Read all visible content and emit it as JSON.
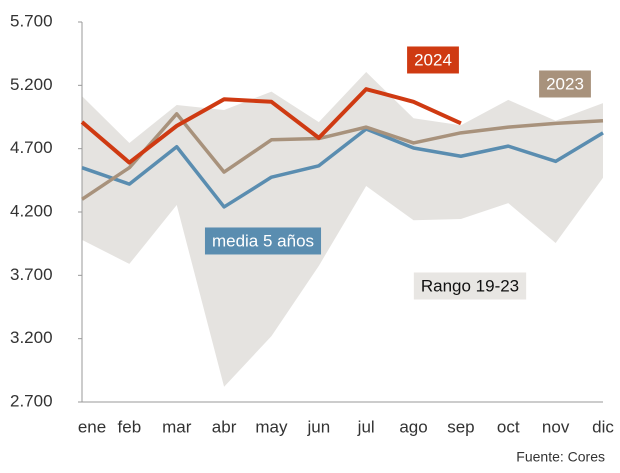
{
  "chart_data": {
    "type": "line",
    "categories": [
      "ene",
      "feb",
      "mar",
      "abr",
      "may",
      "jun",
      "jul",
      "ago",
      "sep",
      "oct",
      "nov",
      "dic"
    ],
    "range": {
      "name": "Rango 19-23",
      "color": "#e5e3e0",
      "upper": [
        5115,
        4745,
        5045,
        5005,
        5150,
        4910,
        5305,
        4940,
        4885,
        5085,
        4920,
        5060
      ],
      "lower": [
        3980,
        3790,
        4255,
        2820,
        3220,
        3775,
        4405,
        4135,
        4145,
        4270,
        3955,
        4470
      ]
    },
    "series": [
      {
        "name": "media 5 años",
        "color": "#5a8db0",
        "values": [
          4550,
          4420,
          4715,
          4240,
          4475,
          4565,
          4855,
          4705,
          4640,
          4720,
          4600,
          4825
        ]
      },
      {
        "name": "2023",
        "color": "#a8927c",
        "values": [
          4300,
          4550,
          4975,
          4515,
          4770,
          4780,
          4870,
          4745,
          4825,
          4870,
          4900,
          4920
        ]
      },
      {
        "name": "2024",
        "color": "#cf3a12",
        "values": [
          4910,
          4590,
          4880,
          5090,
          5070,
          4785,
          5170,
          5070,
          4900,
          null,
          null,
          null
        ]
      }
    ],
    "ylim": [
      2700,
      5700
    ],
    "yticks": [
      {
        "value": 2700,
        "label": "2.700"
      },
      {
        "value": 3200,
        "label": "3.200"
      },
      {
        "value": 3700,
        "label": "3.700"
      },
      {
        "value": 4200,
        "label": "4.200"
      },
      {
        "value": 4700,
        "label": "4.700"
      },
      {
        "value": 5200,
        "label": "5.200"
      },
      {
        "value": 5700,
        "label": "5.700"
      }
    ],
    "source": "Fuente: Cores"
  }
}
